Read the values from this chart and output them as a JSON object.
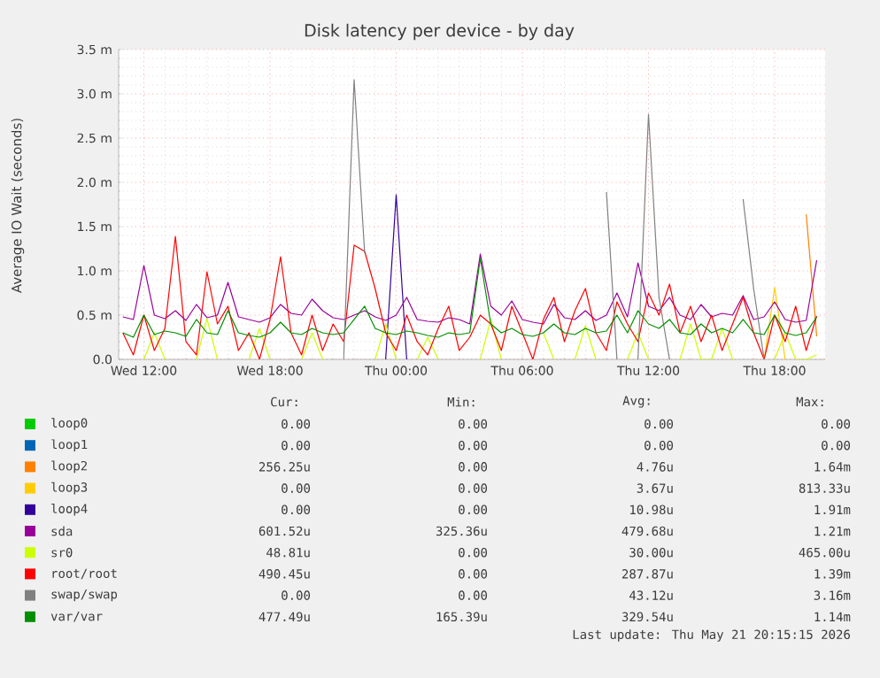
{
  "chart_data": {
    "type": "line",
    "title": "Disk latency per device - by day",
    "ylabel": "Average IO Wait (seconds)",
    "xlim": [
      "2026-05-20T10:48",
      "2026-05-21T20:24"
    ],
    "ylim": [
      0,
      3.5
    ],
    "xticks": [
      {
        "value": "2026-05-20T12:00",
        "label": "Wed 12:00"
      },
      {
        "value": "2026-05-20T18:00",
        "label": "Wed 18:00"
      },
      {
        "value": "2026-05-21T00:00",
        "label": "Thu 00:00"
      },
      {
        "value": "2026-05-21T06:00",
        "label": "Thu 06:00"
      },
      {
        "value": "2026-05-21T12:00",
        "label": "Thu 12:00"
      },
      {
        "value": "2026-05-21T18:00",
        "label": "Thu 18:00"
      }
    ],
    "yticks": [
      {
        "value": 0,
        "label": "0.0"
      },
      {
        "value": 0.5,
        "label": "0.5 m"
      },
      {
        "value": 1,
        "label": "1.0 m"
      },
      {
        "value": 1.5,
        "label": "1.5 m"
      },
      {
        "value": 2,
        "label": "2.0 m"
      },
      {
        "value": 2.5,
        "label": "2.5 m"
      },
      {
        "value": 3,
        "label": "3.0 m"
      },
      {
        "value": 3.5,
        "label": "3.5 m"
      }
    ],
    "grid": true,
    "legend": "bottom",
    "marker": "none",
    "line_style": "solid",
    "x": [
      "2026-05-20T11:00",
      "2026-05-20T11:30",
      "2026-05-20T12:00",
      "2026-05-20T12:30",
      "2026-05-20T13:00",
      "2026-05-20T13:30",
      "2026-05-20T14:00",
      "2026-05-20T14:30",
      "2026-05-20T15:00",
      "2026-05-20T15:30",
      "2026-05-20T16:00",
      "2026-05-20T16:30",
      "2026-05-20T17:00",
      "2026-05-20T17:30",
      "2026-05-20T18:00",
      "2026-05-20T18:30",
      "2026-05-20T19:00",
      "2026-05-20T19:30",
      "2026-05-20T20:00",
      "2026-05-20T20:30",
      "2026-05-20T21:00",
      "2026-05-20T21:30",
      "2026-05-20T22:00",
      "2026-05-20T22:30",
      "2026-05-20T23:00",
      "2026-05-20T23:30",
      "2026-05-21T00:00",
      "2026-05-21T00:30",
      "2026-05-21T01:00",
      "2026-05-21T01:30",
      "2026-05-21T02:00",
      "2026-05-21T02:30",
      "2026-05-21T03:00",
      "2026-05-21T03:30",
      "2026-05-21T04:00",
      "2026-05-21T04:30",
      "2026-05-21T05:00",
      "2026-05-21T05:30",
      "2026-05-21T06:00",
      "2026-05-21T06:30",
      "2026-05-21T07:00",
      "2026-05-21T07:30",
      "2026-05-21T08:00",
      "2026-05-21T08:30",
      "2026-05-21T09:00",
      "2026-05-21T09:30",
      "2026-05-21T10:00",
      "2026-05-21T10:30",
      "2026-05-21T11:00",
      "2026-05-21T11:30",
      "2026-05-21T12:00",
      "2026-05-21T12:30",
      "2026-05-21T13:00",
      "2026-05-21T13:30",
      "2026-05-21T14:00",
      "2026-05-21T14:30",
      "2026-05-21T15:00",
      "2026-05-21T15:30",
      "2026-05-21T16:00",
      "2026-05-21T16:30",
      "2026-05-21T17:00",
      "2026-05-21T17:30",
      "2026-05-21T18:00",
      "2026-05-21T18:30",
      "2026-05-21T19:00",
      "2026-05-21T19:30",
      "2026-05-21T20:00"
    ],
    "series": [
      {
        "name": "loop0",
        "color": "#00cc00",
        "values": [
          null,
          null,
          null,
          null,
          null,
          null,
          null,
          null,
          null,
          null,
          null,
          null,
          null,
          null,
          null,
          null,
          null,
          null,
          null,
          null,
          null,
          null,
          null,
          null,
          null,
          null,
          null,
          null,
          null,
          null,
          null,
          null,
          null,
          null,
          null,
          null,
          null,
          null,
          null,
          null,
          null,
          null,
          null,
          null,
          null,
          null,
          null,
          null,
          null,
          null,
          null,
          null,
          null,
          null,
          null,
          null,
          null,
          null,
          null,
          null,
          null,
          null,
          null,
          null,
          null,
          null,
          null
        ]
      },
      {
        "name": "loop1",
        "color": "#0066b3",
        "values": [
          null,
          null,
          null,
          null,
          null,
          null,
          null,
          null,
          null,
          null,
          null,
          null,
          null,
          null,
          null,
          null,
          null,
          null,
          null,
          null,
          null,
          null,
          null,
          null,
          null,
          null,
          null,
          null,
          null,
          null,
          null,
          null,
          null,
          null,
          null,
          null,
          null,
          null,
          null,
          null,
          null,
          null,
          null,
          null,
          null,
          null,
          null,
          null,
          null,
          null,
          null,
          null,
          null,
          null,
          null,
          null,
          null,
          null,
          null,
          null,
          null,
          null,
          null,
          null,
          null,
          null,
          null
        ]
      },
      {
        "name": "loop2",
        "color": "#ff8000",
        "values": [
          null,
          null,
          null,
          null,
          null,
          null,
          null,
          null,
          null,
          null,
          null,
          null,
          null,
          null,
          null,
          null,
          null,
          null,
          null,
          null,
          null,
          null,
          null,
          null,
          null,
          null,
          null,
          null,
          null,
          null,
          null,
          null,
          null,
          null,
          null,
          null,
          null,
          null,
          null,
          null,
          null,
          null,
          null,
          null,
          null,
          null,
          null,
          null,
          null,
          null,
          null,
          null,
          null,
          null,
          null,
          null,
          null,
          null,
          null,
          null,
          null,
          null,
          null,
          null,
          null,
          1.64,
          0.26
        ]
      },
      {
        "name": "loop3",
        "color": "#ffcc00",
        "values": [
          null,
          null,
          null,
          null,
          null,
          null,
          null,
          null,
          null,
          null,
          null,
          null,
          null,
          null,
          null,
          null,
          null,
          null,
          null,
          null,
          null,
          null,
          null,
          null,
          null,
          null,
          null,
          null,
          null,
          null,
          null,
          null,
          null,
          null,
          null,
          null,
          null,
          null,
          null,
          null,
          null,
          null,
          null,
          null,
          null,
          null,
          null,
          null,
          null,
          null,
          null,
          null,
          null,
          null,
          null,
          null,
          null,
          null,
          null,
          null,
          null,
          0,
          0.81,
          0,
          null,
          null,
          null
        ]
      },
      {
        "name": "loop4",
        "color": "#330099",
        "values": [
          null,
          null,
          null,
          null,
          null,
          null,
          null,
          null,
          null,
          null,
          null,
          null,
          null,
          null,
          null,
          null,
          null,
          null,
          null,
          null,
          null,
          null,
          null,
          null,
          null,
          0,
          1.86,
          0,
          null,
          null,
          null,
          null,
          null,
          null,
          null,
          null,
          null,
          null,
          null,
          null,
          null,
          null,
          null,
          null,
          null,
          null,
          null,
          null,
          null,
          null,
          null,
          null,
          null,
          null,
          null,
          null,
          null,
          null,
          null,
          null,
          null,
          null,
          null,
          null,
          null,
          null,
          null
        ]
      },
      {
        "name": "sda",
        "color": "#990099",
        "values": [
          0.48,
          0.45,
          1.06,
          0.5,
          0.46,
          0.55,
          0.44,
          0.62,
          0.47,
          0.5,
          0.87,
          0.48,
          0.45,
          0.42,
          0.47,
          0.62,
          0.52,
          0.5,
          0.68,
          0.55,
          0.47,
          0.45,
          0.5,
          0.55,
          0.48,
          0.44,
          0.5,
          0.7,
          0.45,
          0.43,
          0.42,
          0.47,
          0.45,
          0.4,
          1.19,
          0.6,
          0.5,
          0.66,
          0.45,
          0.42,
          0.4,
          0.62,
          0.47,
          0.45,
          0.55,
          0.44,
          0.5,
          0.75,
          0.48,
          1.09,
          0.6,
          0.55,
          0.7,
          0.5,
          0.45,
          0.62,
          0.48,
          0.52,
          0.5,
          0.72,
          0.45,
          0.48,
          0.65,
          0.45,
          0.42,
          0.44,
          1.12
        ]
      },
      {
        "name": "sr0",
        "color": "#ccff00",
        "values": [
          null,
          null,
          0,
          0.3,
          0,
          null,
          null,
          0,
          0.46,
          0,
          null,
          null,
          0,
          0.35,
          0,
          null,
          null,
          0,
          0.3,
          0,
          null,
          null,
          null,
          null,
          0,
          0.4,
          0,
          null,
          0,
          0.25,
          0,
          null,
          null,
          null,
          0,
          0.45,
          0,
          null,
          null,
          null,
          0.3,
          0,
          null,
          0,
          0.38,
          0,
          null,
          null,
          0,
          0.3,
          0,
          null,
          null,
          0,
          0.4,
          0,
          0,
          0.35,
          0,
          null,
          null,
          null,
          0,
          0.3,
          0,
          0,
          0.05
        ]
      },
      {
        "name": "root/root",
        "color": "#ff0000",
        "values": [
          0.3,
          0.05,
          0.5,
          0.1,
          0.35,
          1.39,
          0.2,
          0.05,
          0.99,
          0.4,
          0.6,
          0.1,
          0.3,
          0,
          0.45,
          1.16,
          0.3,
          0.05,
          0.5,
          0.1,
          0.4,
          0.2,
          1.29,
          1.22,
          0.8,
          0.3,
          0.1,
          0.5,
          0.2,
          0.05,
          0.35,
          0.6,
          0.1,
          0.25,
          0.5,
          0.4,
          0.1,
          0.6,
          0.3,
          0,
          0.45,
          0.7,
          0.2,
          0.55,
          0.8,
          0.3,
          0.1,
          0.65,
          0.4,
          0.2,
          0.75,
          0.5,
          0.85,
          0.3,
          0.6,
          0.2,
          0.5,
          0.1,
          0.4,
          0.7,
          0.3,
          0,
          0.5,
          0.2,
          0.6,
          0.1,
          0.49
        ]
      },
      {
        "name": "swap/swap",
        "color": "#808080",
        "values": [
          null,
          null,
          null,
          null,
          null,
          null,
          null,
          null,
          null,
          null,
          null,
          null,
          null,
          null,
          null,
          null,
          null,
          null,
          null,
          null,
          null,
          0,
          3.16,
          1.2,
          null,
          null,
          null,
          null,
          null,
          null,
          null,
          null,
          null,
          null,
          null,
          null,
          null,
          null,
          null,
          null,
          null,
          null,
          null,
          null,
          null,
          null,
          1.89,
          0,
          null,
          0,
          2.77,
          0.7,
          0,
          null,
          null,
          null,
          null,
          null,
          null,
          1.81,
          0.8,
          0,
          null,
          null,
          null,
          null,
          null
        ]
      },
      {
        "name": "var/var",
        "color": "#008f00",
        "values": [
          0.3,
          0.25,
          0.5,
          0.28,
          0.32,
          0.3,
          0.26,
          0.45,
          0.3,
          0.28,
          0.55,
          0.3,
          0.27,
          0.25,
          0.3,
          0.42,
          0.3,
          0.28,
          0.35,
          0.3,
          0.28,
          0.3,
          0.45,
          0.6,
          0.35,
          0.3,
          0.28,
          0.32,
          0.3,
          0.27,
          0.25,
          0.3,
          0.28,
          0.3,
          1.14,
          0.4,
          0.3,
          0.35,
          0.28,
          0.26,
          0.3,
          0.4,
          0.3,
          0.28,
          0.35,
          0.3,
          0.32,
          0.5,
          0.3,
          0.55,
          0.4,
          0.35,
          0.45,
          0.3,
          0.28,
          0.4,
          0.3,
          0.35,
          0.3,
          0.45,
          0.3,
          0.28,
          0.5,
          0.3,
          0.27,
          0.3,
          0.48
        ]
      }
    ],
    "annotations": [
      "Cur:",
      "Min:",
      "Avg:",
      "Max:",
      "0.00",
      "0.00",
      "0.00",
      "0.00",
      "0.00",
      "0.00",
      "0.00",
      "0.00",
      "256.25u",
      "0.00",
      "4.76u",
      "1.64m",
      "0.00",
      "0.00",
      "3.67u",
      "813.33u",
      "0.00",
      "0.00",
      "10.98u",
      "1.91m",
      "601.52u",
      "325.36u",
      "479.68u",
      "1.21m",
      "48.81u",
      "0.00",
      "30.00u",
      "465.00u",
      "490.45u",
      "0.00",
      "287.87u",
      "1.39m",
      "0.00",
      "0.00",
      "43.12u",
      "3.16m",
      "477.49u",
      "165.39u",
      "329.54u",
      "1.14m",
      "Last update: Thu May 21 20:15:15 2026"
    ]
  }
}
